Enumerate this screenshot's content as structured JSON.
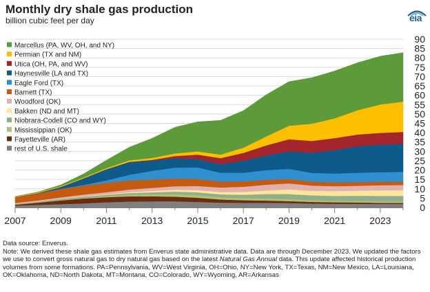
{
  "header": {
    "title": "Monthly dry shale gas production",
    "subtitle": "billion cubic feet per day",
    "logo_text": "eia"
  },
  "colors": {
    "background": "#ffffff",
    "gridline": "#d9d9d9",
    "axis": "#7f7f7f"
  },
  "chart_data": {
    "type": "area",
    "stacked": true,
    "title": "Monthly dry shale gas production",
    "ylabel": "billion cubic feet per day",
    "xlabel": "",
    "xlim": [
      2007,
      2024
    ],
    "ylim": [
      0,
      90
    ],
    "y_ticks": [
      0,
      5,
      10,
      15,
      20,
      25,
      30,
      35,
      40,
      45,
      50,
      55,
      60,
      65,
      70,
      75,
      80,
      85,
      90
    ],
    "x_ticks": [
      2007,
      2009,
      2011,
      2013,
      2015,
      2017,
      2019,
      2021,
      2023
    ],
    "y_axis_position": "right",
    "grid": "horizontal",
    "legend_position": "top-left",
    "x": [
      2007,
      2008,
      2009,
      2010,
      2011,
      2012,
      2013,
      2014,
      2015,
      2016,
      2017,
      2018,
      2019,
      2020,
      2021,
      2022,
      2023,
      2024
    ],
    "series": [
      {
        "name": "rest of U.S. shale",
        "color": "#7f7f7f",
        "values": [
          1.0,
          1.4,
          1.8,
          2.2,
          2.8,
          3.2,
          3.3,
          3.3,
          3.0,
          2.6,
          2.5,
          2.5,
          2.4,
          2.1,
          2.0,
          2.0,
          1.9,
          1.9
        ]
      },
      {
        "name": "Fayetteville (AR)",
        "color": "#6b2c11",
        "values": [
          0.5,
          1.2,
          2.0,
          2.6,
          2.7,
          2.8,
          2.7,
          2.5,
          2.2,
          1.7,
          1.4,
          1.2,
          1.0,
          0.9,
          0.8,
          0.7,
          0.6,
          0.6
        ]
      },
      {
        "name": "Mississippian (OK)",
        "color": "#b2c16f",
        "values": [
          0.1,
          0.1,
          0.2,
          0.3,
          0.5,
          0.8,
          1.0,
          1.3,
          1.4,
          1.2,
          1.1,
          1.2,
          1.1,
          0.9,
          0.8,
          0.8,
          0.8,
          0.8
        ]
      },
      {
        "name": "Niobrara-Codell (CO and WY)",
        "color": "#8fae8c",
        "values": [
          0.4,
          0.5,
          0.6,
          0.7,
          0.8,
          0.9,
          1.1,
          1.4,
          1.5,
          1.5,
          1.8,
          2.3,
          2.7,
          2.6,
          2.6,
          2.8,
          2.9,
          2.9
        ]
      },
      {
        "name": "Bakken (ND and MT)",
        "color": "#fde59c",
        "values": [
          0.1,
          0.1,
          0.1,
          0.2,
          0.3,
          0.5,
          0.8,
          1.0,
          1.2,
          1.3,
          1.5,
          1.9,
          2.5,
          2.4,
          2.6,
          2.7,
          3.0,
          3.1
        ]
      },
      {
        "name": "Woodford (OK)",
        "color": "#e2b1ad",
        "values": [
          0.3,
          0.5,
          0.7,
          0.9,
          1.1,
          1.4,
          1.6,
          1.9,
          2.2,
          2.4,
          2.8,
          3.1,
          3.2,
          2.8,
          2.6,
          2.6,
          2.7,
          2.7
        ]
      },
      {
        "name": "Barnett (TX)",
        "color": "#c55a11",
        "values": [
          3.0,
          3.7,
          4.5,
          4.8,
          5.0,
          4.9,
          4.5,
          4.1,
          3.8,
          3.2,
          2.9,
          2.6,
          2.4,
          2.2,
          2.1,
          2.0,
          1.9,
          1.9
        ]
      },
      {
        "name": "Eagle Ford (TX)",
        "color": "#2f8fcf",
        "values": [
          0.0,
          0.0,
          0.1,
          0.4,
          1.3,
          3.0,
          4.6,
          5.8,
          6.1,
          4.7,
          4.6,
          5.2,
          5.4,
          4.6,
          4.7,
          5.0,
          5.1,
          5.2
        ]
      },
      {
        "name": "Haynesville (LA and TX)",
        "color": "#0e5a8a",
        "values": [
          0.1,
          0.2,
          1.0,
          3.5,
          6.0,
          6.8,
          5.6,
          5.0,
          4.5,
          4.6,
          6.4,
          7.8,
          9.3,
          10.8,
          12.5,
          14.2,
          14.7,
          15.0
        ]
      },
      {
        "name": "Utica (OH, PA, and WV)",
        "color": "#a5252c",
        "values": [
          0.0,
          0.0,
          0.0,
          0.0,
          0.0,
          0.1,
          0.3,
          1.2,
          2.4,
          3.2,
          4.2,
          5.4,
          6.5,
          6.3,
          6.4,
          6.2,
          6.3,
          6.3
        ]
      },
      {
        "name": "Permian (TX and NM)",
        "color": "#fcc000",
        "values": [
          0.3,
          0.4,
          0.4,
          0.5,
          0.6,
          0.8,
          1.0,
          1.4,
          1.7,
          1.9,
          2.8,
          4.8,
          7.2,
          9.2,
          10.6,
          13.0,
          15.2,
          16.2
        ]
      },
      {
        "name": "Marcellus (PA, WV, OH, and NY)",
        "color": "#5c9a3a",
        "values": [
          0.1,
          0.2,
          0.7,
          1.9,
          4.2,
          7.0,
          10.5,
          14.0,
          15.8,
          18.3,
          19.8,
          22.3,
          23.6,
          24.6,
          25.3,
          25.4,
          25.8,
          26.2
        ]
      }
    ]
  },
  "notes": {
    "source": "Data source: Enverus.",
    "text_1": "Note: We derived these shale gas estimates from Enverus state administrative data. Data are through December 2023. We updated the factors we use to convert gross natural gas to dry natural gas based on the latest ",
    "italic": "Natural Gas Annual",
    "text_2": " data. This update affected historical production volumes from some formations. PA=Pennsylvania, WV=West Virginia, OH=Ohio, NY=New York, TX=Texas, NM=New Mexico, LA=Louisiana, OK=Oklahoma, ND=North Dakota, MT=Montana, CO=Colorado, WY=Wyoming, AR=Arkansas"
  }
}
